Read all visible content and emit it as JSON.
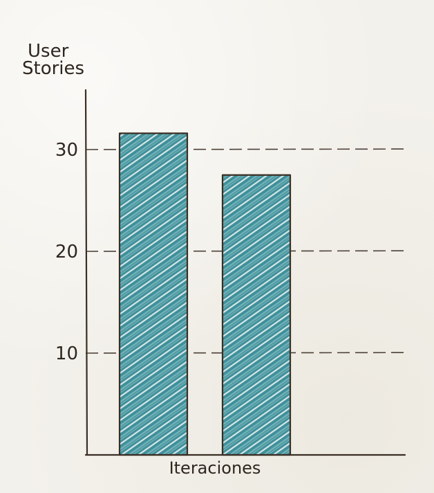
{
  "chart_data": {
    "type": "bar",
    "categories": [
      "",
      ""
    ],
    "values": [
      31.6,
      27.5
    ],
    "xlabel": "Iteraciones",
    "ylabel_lines": [
      "User",
      "Stories"
    ],
    "yticks": [
      "10",
      "20",
      "30"
    ],
    "ylim": [
      0,
      35
    ],
    "grid": "horizontal dashed at 10, 20, 30",
    "colors": {
      "bar_fill": "#3f8f99",
      "bar_light": "#8fc8cf",
      "bar_dark": "#2f6f74",
      "ink": "#3a2e24"
    }
  }
}
